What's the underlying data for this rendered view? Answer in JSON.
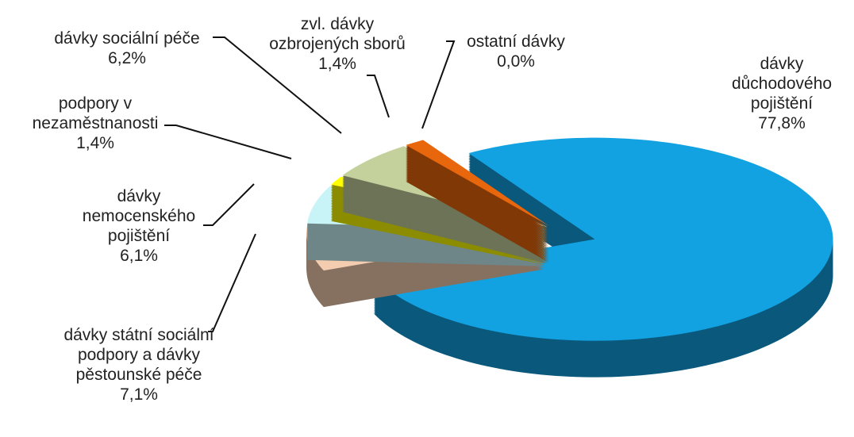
{
  "chart_data": {
    "type": "pie",
    "categories": [
      "dávky důchodového pojištění",
      "dávky státní sociální podpory a dávky pěstounské péče",
      "dávky nemocenského pojištění",
      "podpory v nezaměstnanosti",
      "dávky sociální péče",
      "zvl. dávky ozbrojených sborů",
      "ostatní dávky"
    ],
    "values": [
      77.8,
      7.1,
      6.1,
      1.4,
      6.2,
      1.4,
      0.0
    ],
    "value_labels": [
      "77,8%",
      "7,1%",
      "6,1%",
      "1,4%",
      "6,2%",
      "1,4%",
      "0,0%"
    ],
    "colors": [
      "#12a2e2",
      "#f4cdb0",
      "#c8f4f7",
      "#ffff00",
      "#c4d19c",
      "#e8660c",
      "#9a8cb4"
    ]
  }
}
